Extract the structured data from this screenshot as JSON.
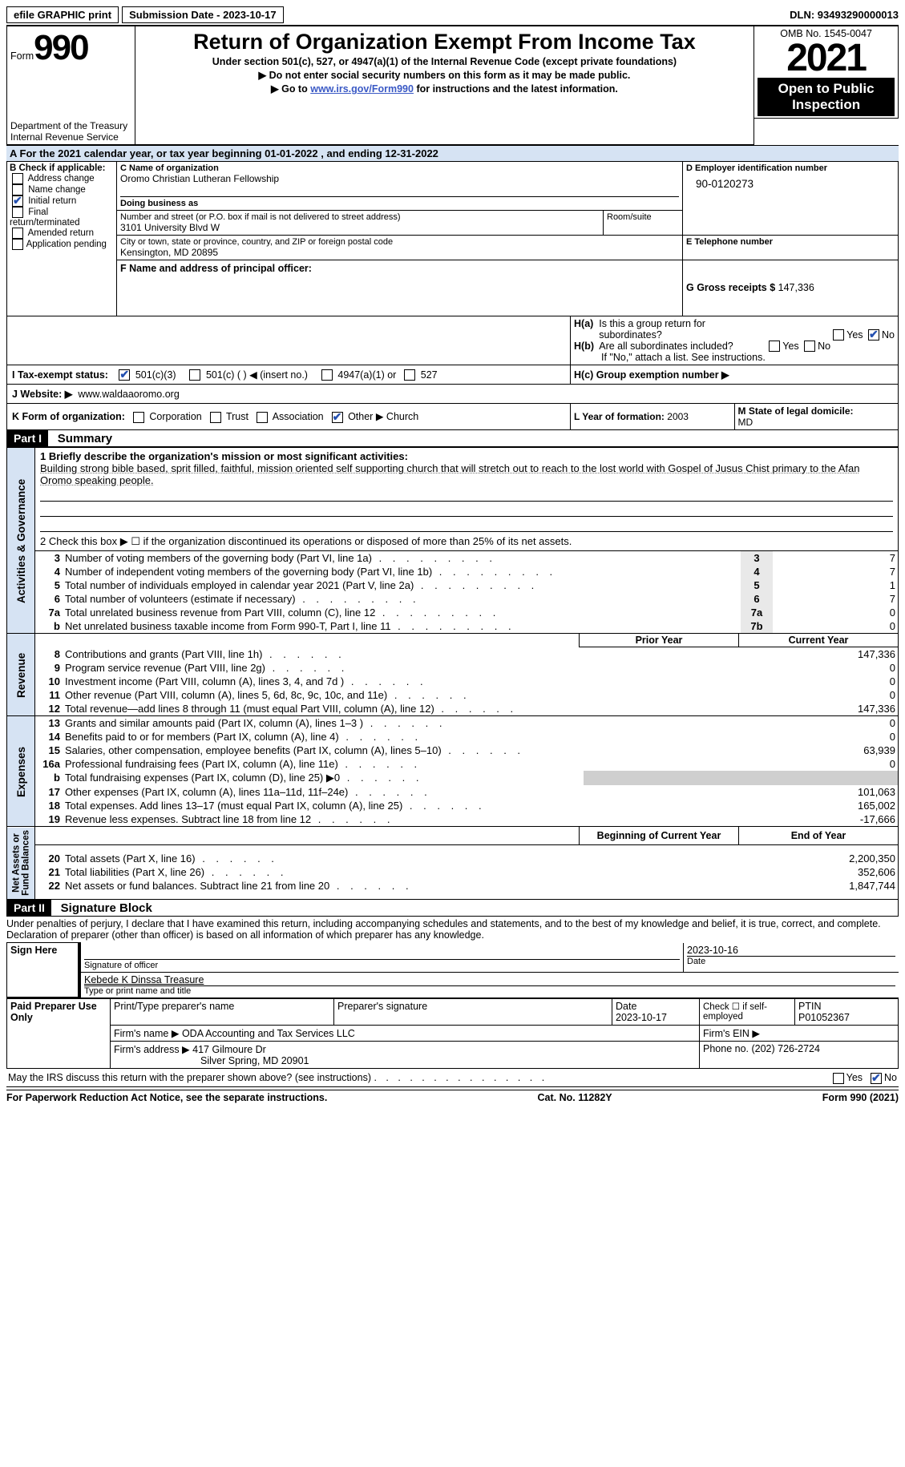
{
  "topbar": {
    "efile": "efile GRAPHIC print",
    "sub_date_label": "Submission Date - 2023-10-17",
    "dln": "DLN: 93493290000013"
  },
  "header": {
    "form_label": "Form",
    "form_num": "990",
    "dept_line1": "Department of the Treasury",
    "dept_line2": "Internal Revenue Service",
    "title": "Return of Organization Exempt From Income Tax",
    "section_line": "Under section 501(c), 527, or 4947(a)(1) of the Internal Revenue Code (except private foundations)",
    "ssn_line": "▶ Do not enter social security numbers on this form as it may be made public.",
    "goto_line_a": "▶ Go to ",
    "goto_link": "www.irs.gov/Form990",
    "goto_line_b": " for instructions and the latest information.",
    "omb": "OMB No. 1545-0047",
    "year": "2021",
    "otpi": "Open to Public Inspection"
  },
  "section_a": "A For the 2021 calendar year, or tax year beginning 01-01-2022   , and ending 12-31-2022",
  "b_label": "B Check if applicable:",
  "b_items": [
    "Address change",
    "Name change",
    "Initial return",
    "Final return/terminated",
    "Amended return",
    "Application pending"
  ],
  "c": {
    "name_label": "C Name of organization",
    "name": "Oromo Christian Lutheran Fellowship",
    "dba_label": "Doing business as",
    "addr_label": "Number and street (or P.O. box if mail is not delivered to street address)",
    "room_label": "Room/suite",
    "addr": "3101 University Blvd W",
    "city_label": "City or town, state or province, country, and ZIP or foreign postal code",
    "city": "Kensington, MD  20895"
  },
  "d": {
    "label": "D Employer identification number",
    "val": "90-0120273"
  },
  "e": {
    "label": "E Telephone number"
  },
  "g": {
    "label": "G Gross receipts $",
    "val": "147,336"
  },
  "f_label": "F Name and address of principal officer:",
  "h": {
    "a_label": "H(a)  Is this a group return for subordinates?",
    "b_label": "H(b)  Are all subordinates included?",
    "b_note": "If \"No,\" attach a list. See instructions.",
    "c_label": "H(c)  Group exemption number ▶",
    "yes": "Yes",
    "no": "No"
  },
  "i": {
    "label": "I  Tax-exempt status:",
    "opts": [
      "501(c)(3)",
      "501(c) (  ) ◀ (insert no.)",
      "4947(a)(1) or",
      "527"
    ]
  },
  "j": {
    "label": "J Website: ▶",
    "val": "www.waldaaoromo.org"
  },
  "k": {
    "label": "K Form of organization:",
    "opts": [
      "Corporation",
      "Trust",
      "Association",
      "Other ▶"
    ],
    "other": "Church"
  },
  "l": {
    "label": "L Year of formation:",
    "val": "2003"
  },
  "m": {
    "label": "M State of legal domicile:",
    "val": "MD"
  },
  "part1": {
    "hdr": "Part I",
    "title": "Summary",
    "q1_label": "1  Briefly describe the organization's mission or most significant activities:",
    "mission": "Building strong bible based, sprit filled, faithful, mission oriented self supporting church that will stretch out to reach to the lost world with Gospel of Jusus Chist primary to the Afan Oromo speaking people.",
    "q2": "2   Check this box ▶ ☐ if the organization discontinued its operations or disposed of more than 25% of its net assets.",
    "rows_ag": [
      {
        "n": "3",
        "t": "Number of voting members of the governing body (Part VI, line 1a)",
        "b": "3",
        "v": "7"
      },
      {
        "n": "4",
        "t": "Number of independent voting members of the governing body (Part VI, line 1b)",
        "b": "4",
        "v": "7"
      },
      {
        "n": "5",
        "t": "Total number of individuals employed in calendar year 2021 (Part V, line 2a)",
        "b": "5",
        "v": "1"
      },
      {
        "n": "6",
        "t": "Total number of volunteers (estimate if necessary)",
        "b": "6",
        "v": "7"
      },
      {
        "n": "7a",
        "t": "Total unrelated business revenue from Part VIII, column (C), line 12",
        "b": "7a",
        "v": "0"
      },
      {
        "n": "b",
        "t": "Net unrelated business taxable income from Form 990-T, Part I, line 11",
        "b": "7b",
        "v": "0"
      }
    ],
    "prior_year_hdr": "Prior Year",
    "current_year_hdr": "Current Year",
    "rows_rev": [
      {
        "n": "8",
        "t": "Contributions and grants (Part VIII, line 1h)",
        "pv": "",
        "cv": "147,336"
      },
      {
        "n": "9",
        "t": "Program service revenue (Part VIII, line 2g)",
        "pv": "",
        "cv": "0"
      },
      {
        "n": "10",
        "t": "Investment income (Part VIII, column (A), lines 3, 4, and 7d )",
        "pv": "",
        "cv": "0"
      },
      {
        "n": "11",
        "t": "Other revenue (Part VIII, column (A), lines 5, 6d, 8c, 9c, 10c, and 11e)",
        "pv": "",
        "cv": "0"
      },
      {
        "n": "12",
        "t": "Total revenue—add lines 8 through 11 (must equal Part VIII, column (A), line 12)",
        "pv": "",
        "cv": "147,336"
      }
    ],
    "rows_exp": [
      {
        "n": "13",
        "t": "Grants and similar amounts paid (Part IX, column (A), lines 1–3 )",
        "pv": "",
        "cv": "0"
      },
      {
        "n": "14",
        "t": "Benefits paid to or for members (Part IX, column (A), line 4)",
        "pv": "",
        "cv": "0"
      },
      {
        "n": "15",
        "t": "Salaries, other compensation, employee benefits (Part IX, column (A), lines 5–10)",
        "pv": "",
        "cv": "63,939"
      },
      {
        "n": "16a",
        "t": "Professional fundraising fees (Part IX, column (A), line 11e)",
        "pv": "",
        "cv": "0"
      },
      {
        "n": "b",
        "t": "Total fundraising expenses (Part IX, column (D), line 25) ▶0",
        "pv": "GREY",
        "cv": "GREY"
      },
      {
        "n": "17",
        "t": "Other expenses (Part IX, column (A), lines 11a–11d, 11f–24e)",
        "pv": "",
        "cv": "101,063"
      },
      {
        "n": "18",
        "t": "Total expenses. Add lines 13–17 (must equal Part IX, column (A), line 25)",
        "pv": "",
        "cv": "165,002"
      },
      {
        "n": "19",
        "t": "Revenue less expenses. Subtract line 18 from line 12",
        "pv": "",
        "cv": "-17,666"
      }
    ],
    "boy_hdr": "Beginning of Current Year",
    "eoy_hdr": "End of Year",
    "rows_na": [
      {
        "n": "20",
        "t": "Total assets (Part X, line 16)",
        "pv": "",
        "cv": "2,200,350"
      },
      {
        "n": "21",
        "t": "Total liabilities (Part X, line 26)",
        "pv": "",
        "cv": "352,606"
      },
      {
        "n": "22",
        "t": "Net assets or fund balances. Subtract line 21 from line 20",
        "pv": "",
        "cv": "1,847,744"
      }
    ],
    "vlabel_ag": "Activities & Governance",
    "vlabel_rev": "Revenue",
    "vlabel_exp": "Expenses",
    "vlabel_na": "Net Assets or\nFund Balances"
  },
  "part2": {
    "hdr": "Part II",
    "title": "Signature Block",
    "penalty": "Under penalties of perjury, I declare that I have examined this return, including accompanying schedules and statements, and to the best of my knowledge and belief, it is true, correct, and complete. Declaration of preparer (other than officer) is based on all information of which preparer has any knowledge.",
    "sign_here": "Sign Here",
    "sig_officer": "Signature of officer",
    "sig_date": "Date",
    "officer_date": "2023-10-16",
    "officer_name": "Kebede K Dinssa Treasure",
    "type_name": "Type or print name and title",
    "paid": "Paid Preparer Use Only",
    "prep_name_label": "Print/Type preparer's name",
    "prep_sig_label": "Preparer's signature",
    "date_label": "Date",
    "date_val": "2023-10-17",
    "check_if": "Check ☐ if self-employed",
    "ptin_label": "PTIN",
    "ptin": "P01052367",
    "firm_name_label": "Firm's name   ▶",
    "firm_name": "ODA Accounting and Tax Services LLC",
    "firm_ein_label": "Firm's EIN ▶",
    "firm_addr_label": "Firm's address ▶",
    "firm_addr1": "417 Gilmoure Dr",
    "firm_addr2": "Silver Spring, MD  20901",
    "phone_label": "Phone no.",
    "phone": "(202) 726-2724",
    "discuss": "May the IRS discuss this return with the preparer shown above? (see instructions)",
    "yes": "Yes",
    "no": "No"
  },
  "footer": {
    "left": "For Paperwork Reduction Act Notice, see the separate instructions.",
    "mid": "Cat. No. 11282Y",
    "right": "Form 990 (2021)"
  },
  "colors": {
    "link": "#3a59c5",
    "highlight": "#d6e3f3"
  }
}
